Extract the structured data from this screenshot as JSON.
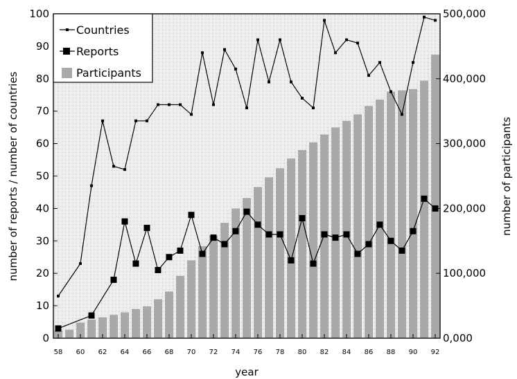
{
  "chart_data": {
    "type": "bar+line",
    "xlabel": "year",
    "ylabel_left": "number of reports / number of countries",
    "ylabel_right": "number of participants",
    "x_tick_labels": [
      "58",
      "60",
      "62",
      "64",
      "66",
      "68",
      "70",
      "72",
      "74",
      "76",
      "78",
      "80",
      "82",
      "84",
      "86",
      "88",
      "90",
      "92"
    ],
    "y_left_ticks": [
      "0",
      "10",
      "20",
      "30",
      "40",
      "50",
      "60",
      "70",
      "80",
      "90",
      "100"
    ],
    "y_right_ticks": [
      "0,000",
      "100,000",
      "200,000",
      "300,000",
      "400,000",
      "500,000"
    ],
    "ylim_left": [
      0,
      100
    ],
    "ylim_right": [
      0,
      500000
    ],
    "xlim": [
      58,
      92
    ],
    "grid": false,
    "legend_position": "top-left",
    "x": [
      58,
      59,
      60,
      61,
      62,
      63,
      64,
      65,
      66,
      67,
      68,
      69,
      70,
      71,
      72,
      73,
      74,
      75,
      76,
      77,
      78,
      79,
      80,
      81,
      82,
      83,
      84,
      85,
      86,
      87,
      88,
      89,
      90,
      91,
      92
    ],
    "series": [
      {
        "name": "Countries",
        "marker": "small-square-line",
        "values": [
          13,
          null,
          23,
          47,
          67,
          53,
          52,
          67,
          67,
          72,
          72,
          72,
          69,
          88,
          72,
          89,
          83,
          71,
          92,
          79,
          92,
          79,
          74,
          71,
          98,
          88,
          92,
          91,
          81,
          85,
          76,
          69,
          85,
          99,
          98
        ]
      },
      {
        "name": "Reports",
        "marker": "large-square-line",
        "values": [
          3,
          null,
          null,
          7,
          null,
          18,
          36,
          23,
          34,
          21,
          25,
          27,
          38,
          26,
          31,
          29,
          33,
          39,
          35,
          32,
          32,
          24,
          37,
          23,
          32,
          31,
          32,
          26,
          29,
          35,
          30,
          27,
          33,
          43,
          40
        ]
      },
      {
        "name": "Participants",
        "marker": "bar",
        "values": [
          12000,
          13000,
          24000,
          29000,
          32000,
          36000,
          40000,
          45000,
          49000,
          60000,
          72000,
          96000,
          120000,
          142000,
          158000,
          178000,
          200000,
          216000,
          233000,
          248000,
          262000,
          277000,
          290000,
          302000,
          314000,
          325000,
          335000,
          345000,
          358000,
          368000,
          380000,
          382000,
          384000,
          397000,
          437000
        ]
      }
    ]
  }
}
